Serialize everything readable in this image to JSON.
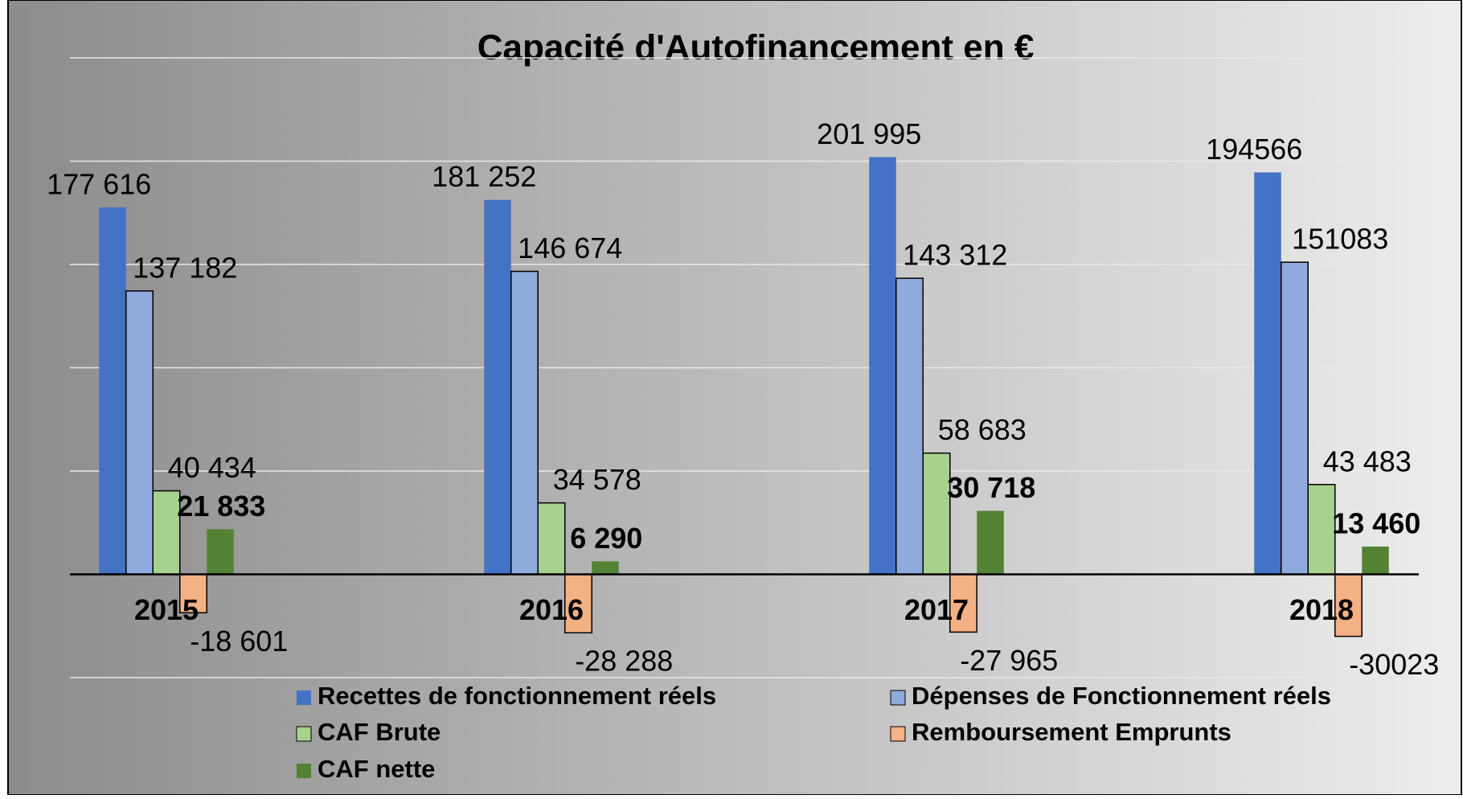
{
  "chart_data": {
    "type": "bar",
    "title": "Capacité d'Autofinancement en €",
    "categories": [
      "2015",
      "2016",
      "2017",
      "2018"
    ],
    "series": [
      {
        "name": "Recettes de fonctionnement réels",
        "color": "#4472c4",
        "values": [
          177616,
          181252,
          201995,
          194566
        ],
        "value_labels": [
          "177 616",
          "181 252",
          "201 995",
          "194566"
        ]
      },
      {
        "name": "Dépenses de Fonctionnement réels",
        "color": "#8faadc",
        "values": [
          137182,
          146674,
          143312,
          151083
        ],
        "value_labels": [
          "137 182",
          "146 674",
          "143 312",
          "151083"
        ]
      },
      {
        "name": "CAF Brute",
        "color": "#a9d18e",
        "values": [
          40434,
          34578,
          58683,
          43483
        ],
        "value_labels": [
          "40 434",
          "34 578",
          "58 683",
          "43 483"
        ]
      },
      {
        "name": "Remboursement Emprunts",
        "color": "#f4b183",
        "values": [
          -18601,
          -28288,
          -27965,
          -30023
        ],
        "value_labels": [
          "-18 601",
          "-28 288",
          "-27 965",
          "-30023"
        ]
      },
      {
        "name": "CAF nette",
        "color": "#548235",
        "values": [
          21833,
          6290,
          30718,
          13460
        ],
        "value_labels": [
          "21 833",
          "6 290",
          "30 718",
          "13 460"
        ]
      }
    ],
    "ylim": [
      -50000,
      250000
    ],
    "yticks": [
      -50000,
      0,
      50000,
      100000,
      150000,
      200000,
      250000
    ],
    "grid": true
  }
}
